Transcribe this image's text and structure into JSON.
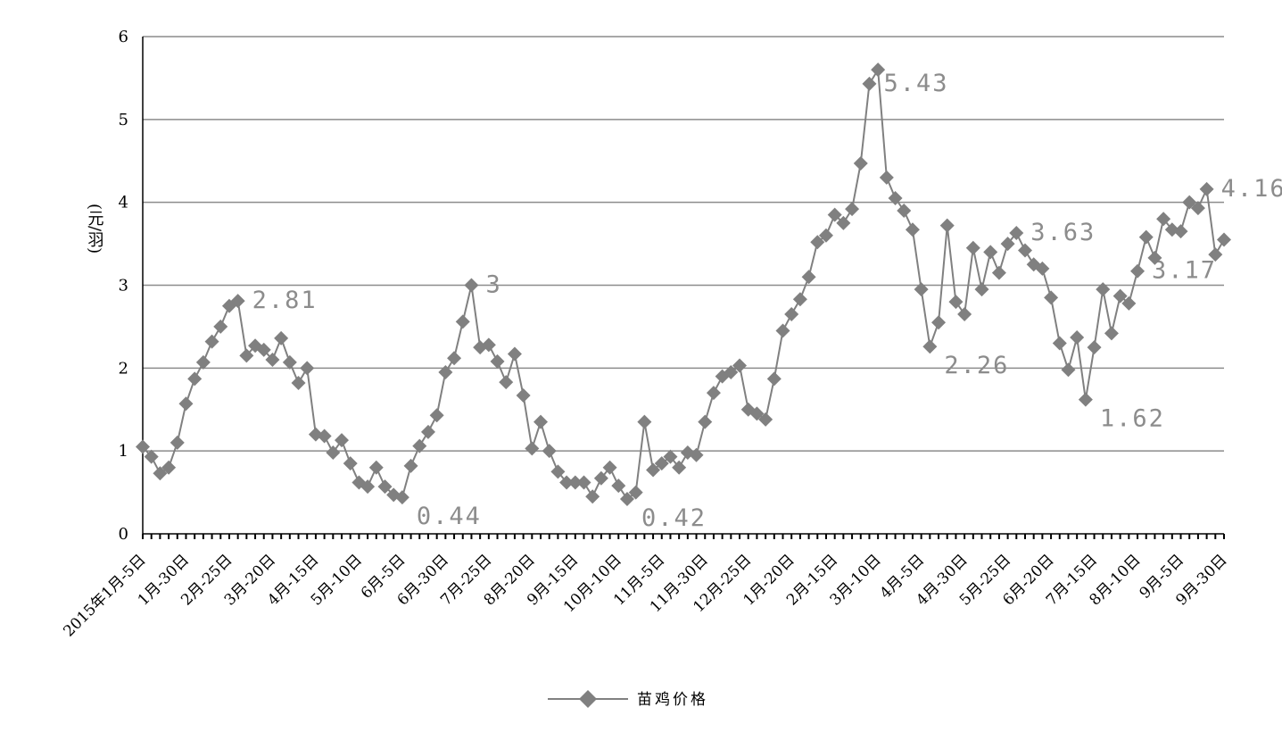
{
  "chart_data": {
    "type": "line",
    "y_label": "(元/羽)",
    "categories": [
      "2015年1月-5日",
      null,
      null,
      null,
      null,
      "1月-30日",
      null,
      null,
      null,
      null,
      "2月-25日",
      null,
      null,
      null,
      null,
      "3月-20日",
      null,
      null,
      null,
      null,
      "4月-15日",
      null,
      null,
      null,
      null,
      "5月-10日",
      null,
      null,
      null,
      null,
      "6月-5日",
      null,
      null,
      null,
      null,
      "6月-30日",
      null,
      null,
      null,
      null,
      "7月-25日",
      null,
      null,
      null,
      null,
      "8月-20日",
      null,
      null,
      null,
      null,
      "9月-15日",
      null,
      null,
      null,
      null,
      "10月-10日",
      null,
      null,
      null,
      null,
      "11月-5日",
      null,
      null,
      null,
      null,
      "11月-30日",
      null,
      null,
      null,
      null,
      "12月-25日",
      null,
      null,
      null,
      null,
      "1月-20日",
      null,
      null,
      null,
      null,
      "2月-15日",
      null,
      null,
      null,
      null,
      "3月-10日",
      null,
      null,
      null,
      null,
      "4月-5日",
      null,
      null,
      null,
      null,
      "4月-30日",
      null,
      null,
      null,
      null,
      "5月-25日",
      null,
      null,
      null,
      null,
      "6月-20日",
      null,
      null,
      null,
      null,
      "7月-15日",
      null,
      null,
      null,
      null,
      "8月-10日",
      null,
      null,
      null,
      null,
      "9月-5日",
      null,
      null,
      null,
      null,
      "9月-30日"
    ],
    "series": [
      {
        "name": "苗鸡价格",
        "color": "#808080",
        "values": [
          1.05,
          0.93,
          0.73,
          0.8,
          1.1,
          1.57,
          1.87,
          2.07,
          2.32,
          2.5,
          2.75,
          2.81,
          2.15,
          2.27,
          2.22,
          2.1,
          2.36,
          2.07,
          1.82,
          2.0,
          1.2,
          1.18,
          0.98,
          1.13,
          0.85,
          0.62,
          0.57,
          0.8,
          0.57,
          0.47,
          0.44,
          0.82,
          1.06,
          1.23,
          1.43,
          1.95,
          2.12,
          2.56,
          3,
          2.25,
          2.28,
          2.08,
          1.83,
          2.17,
          1.67,
          1.03,
          1.35,
          1.0,
          0.75,
          0.62,
          0.62,
          0.62,
          0.45,
          0.67,
          0.8,
          0.58,
          0.42,
          0.5,
          1.35,
          0.77,
          0.85,
          0.93,
          0.8,
          0.98,
          0.95,
          1.35,
          1.7,
          1.9,
          1.95,
          2.03,
          1.5,
          1.45,
          1.38,
          1.87,
          2.45,
          2.65,
          2.83,
          3.1,
          3.52,
          3.6,
          3.85,
          3.75,
          3.92,
          4.47,
          5.43,
          5.6,
          4.3,
          4.05,
          3.9,
          3.67,
          2.95,
          2.26,
          2.55,
          3.72,
          2.8,
          2.65,
          3.45,
          2.95,
          3.4,
          3.15,
          3.5,
          3.63,
          3.42,
          3.25,
          3.2,
          2.85,
          2.3,
          1.98,
          2.37,
          1.62,
          2.25,
          2.95,
          2.42,
          2.87,
          2.78,
          3.17,
          3.58,
          3.33,
          3.8,
          3.67,
          3.65,
          4.0,
          3.93,
          4.16,
          3.37,
          3.55
        ],
        "value_labels": [
          null,
          null,
          null,
          null,
          null,
          null,
          null,
          null,
          null,
          null,
          null,
          "2.81",
          null,
          null,
          null,
          null,
          null,
          null,
          null,
          null,
          null,
          null,
          null,
          null,
          null,
          null,
          null,
          null,
          null,
          null,
          "0.44",
          null,
          null,
          null,
          null,
          null,
          null,
          null,
          "3",
          null,
          null,
          null,
          null,
          null,
          null,
          null,
          null,
          null,
          null,
          null,
          null,
          null,
          null,
          null,
          null,
          null,
          "0.42",
          null,
          null,
          null,
          null,
          null,
          null,
          null,
          null,
          null,
          null,
          null,
          null,
          null,
          null,
          null,
          null,
          null,
          null,
          null,
          null,
          null,
          null,
          null,
          null,
          null,
          null,
          null,
          "5.43",
          null,
          null,
          null,
          null,
          null,
          null,
          "2.26",
          null,
          null,
          null,
          null,
          null,
          null,
          null,
          null,
          null,
          "3.63",
          null,
          null,
          null,
          null,
          null,
          null,
          null,
          "1.62",
          null,
          null,
          null,
          null,
          null,
          "3.17",
          null,
          null,
          null,
          null,
          null,
          null,
          null,
          "4.16",
          null,
          null
        ]
      }
    ],
    "ylim": [
      0,
      6
    ],
    "yticks": [
      0,
      1,
      2,
      3,
      4,
      5,
      6
    ],
    "grid": true,
    "legend": "bottom"
  }
}
